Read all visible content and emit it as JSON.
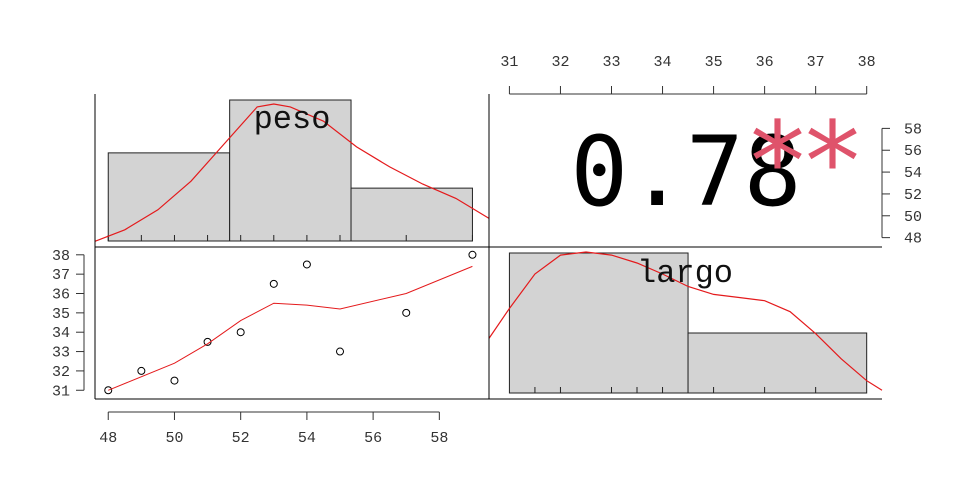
{
  "chart_data": {
    "type": "scatter-matrix",
    "variables": [
      "peso",
      "largo"
    ],
    "correlation": {
      "value": "0.78",
      "significance": "**"
    },
    "colors": {
      "hist_fill": "#d3d3d3",
      "smooth": "#e41a1c",
      "stars": "#DF536B",
      "axis": "#333333"
    },
    "x_ticks_bottom": [
      "48",
      "50",
      "52",
      "54",
      "56",
      "58"
    ],
    "x_ticks_top": [
      "31",
      "32",
      "33",
      "34",
      "35",
      "36",
      "37",
      "38"
    ],
    "y_ticks_left": [
      "31",
      "32",
      "33",
      "34",
      "35",
      "36",
      "37",
      "38"
    ],
    "y_ticks_right": [
      "48",
      "50",
      "52",
      "54",
      "56",
      "58"
    ],
    "peso_range": [
      47.6,
      59.5
    ],
    "largo_range": [
      30.6,
      38.3
    ],
    "scatter": {
      "x": [
        48,
        49,
        50,
        51,
        52,
        53,
        54,
        55,
        57,
        59
      ],
      "y": [
        31,
        32,
        31.5,
        33.5,
        34,
        36.5,
        37.5,
        33,
        35,
        38
      ]
    },
    "scatter_smooth": {
      "x": [
        48,
        50,
        51,
        52,
        53,
        54,
        55,
        57,
        59
      ],
      "y": [
        31,
        32.4,
        33.4,
        34.6,
        35.5,
        35.4,
        35.2,
        36,
        37.4
      ]
    },
    "hist_peso": {
      "bins": [
        [
          48,
          51.667
        ],
        [
          51.667,
          55.333
        ],
        [
          55.333,
          59
        ]
      ],
      "counts": [
        5,
        8,
        3
      ],
      "max_count": 8,
      "rug": [
        48,
        49,
        50,
        51,
        52,
        53,
        54,
        55,
        57,
        59
      ],
      "density": {
        "x": [
          47.6,
          48.5,
          49.5,
          50.5,
          51.5,
          52.5,
          53.0,
          53.5,
          54.5,
          55.5,
          56.5,
          57.5,
          58.5,
          59.5
        ],
        "y": [
          0.04,
          0.12,
          0.26,
          0.46,
          0.72,
          0.98,
          1.0,
          0.98,
          0.88,
          0.7,
          0.56,
          0.44,
          0.34,
          0.2
        ]
      }
    },
    "hist_largo": {
      "bins": [
        [
          31,
          34.5
        ],
        [
          34.5,
          38
        ]
      ],
      "counts": [
        7,
        3
      ],
      "max_count": 7,
      "rug": [
        31.5,
        32,
        33,
        33.5,
        34,
        35,
        36,
        37
      ],
      "density": {
        "x": [
          30.6,
          31.0,
          31.5,
          32.0,
          32.5,
          33.0,
          33.5,
          34.0,
          34.5,
          35.0,
          35.5,
          36.0,
          36.5,
          37.0,
          37.5,
          38.0,
          38.3
        ],
        "y": [
          0.45,
          0.64,
          0.86,
          0.98,
          1.0,
          0.98,
          0.93,
          0.86,
          0.78,
          0.73,
          0.71,
          0.69,
          0.62,
          0.48,
          0.32,
          0.18,
          0.12
        ]
      }
    }
  }
}
